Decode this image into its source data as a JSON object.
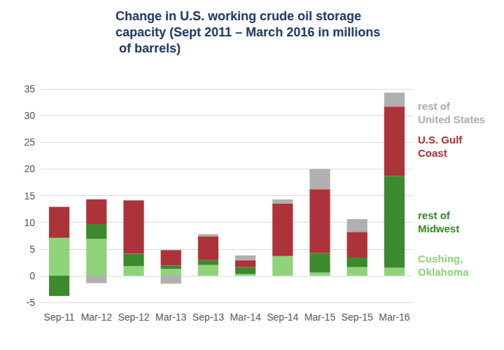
{
  "chart_data": {
    "type": "bar",
    "title": "Change in U.S. working crude oil storage capacity (Sept 2011 – March 2016 in millions of barrels)",
    "categories": [
      "Sep-11",
      "Mar-12",
      "Sep-12",
      "Mar-13",
      "Sep-13",
      "Mar-14",
      "Sep-14",
      "Mar-15",
      "Sep-15",
      "Mar-16"
    ],
    "series": [
      {
        "name": "Cushing, Oklahoma",
        "color": "#8fd47a",
        "values": [
          7.1,
          6.9,
          1.8,
          1.3,
          2.0,
          0.3,
          3.7,
          0.6,
          1.6,
          1.5
        ]
      },
      {
        "name": "rest of Midwest",
        "color": "#3d8a2e",
        "values": [
          -3.8,
          2.8,
          2.3,
          0.6,
          0.9,
          1.3,
          0,
          3.6,
          1.8,
          17.2
        ]
      },
      {
        "name": "U.S. Gulf Coast",
        "color": "#ad333b",
        "values": [
          5.8,
          4.6,
          10.0,
          2.9,
          4.5,
          1.3,
          9.8,
          12.0,
          4.8,
          13.0
        ]
      },
      {
        "name": "rest of United States",
        "color": "#b0b0b0",
        "values": [
          0,
          -1.4,
          0,
          -1.5,
          0.4,
          0.9,
          0.8,
          3.8,
          2.4,
          2.6
        ]
      }
    ],
    "ylim": [
      -5,
      35
    ],
    "yticks": [
      -5,
      0,
      5,
      10,
      15,
      20,
      25,
      30,
      35
    ],
    "grid": true,
    "stacked": true,
    "legend": "right"
  }
}
